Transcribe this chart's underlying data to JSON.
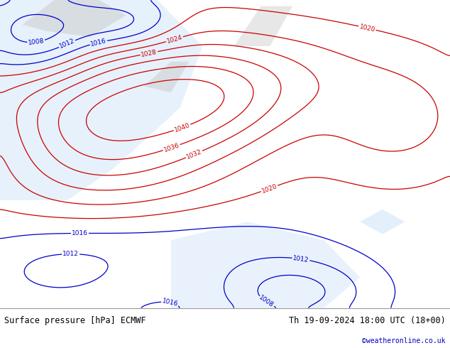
{
  "title_left": "Surface pressure [hPa] ECMWF",
  "title_right": "Th 19-09-2024 18:00 UTC (18+00)",
  "copyright": "©weatheronline.co.uk",
  "fig_width": 6.34,
  "fig_height": 4.9,
  "dpi": 100,
  "bg_land_color": "#b8d8a0",
  "bg_land_color2": "#c8e8b0",
  "bg_sea_color": "#c8e0f8",
  "bg_gray_color": "#d0d0d0",
  "contour_low_color": "#0000cc",
  "contour_high_color": "#cc0000",
  "label_fontsize": 6.5,
  "footer_fontsize": 8.5,
  "footer_color": "#ffffff"
}
